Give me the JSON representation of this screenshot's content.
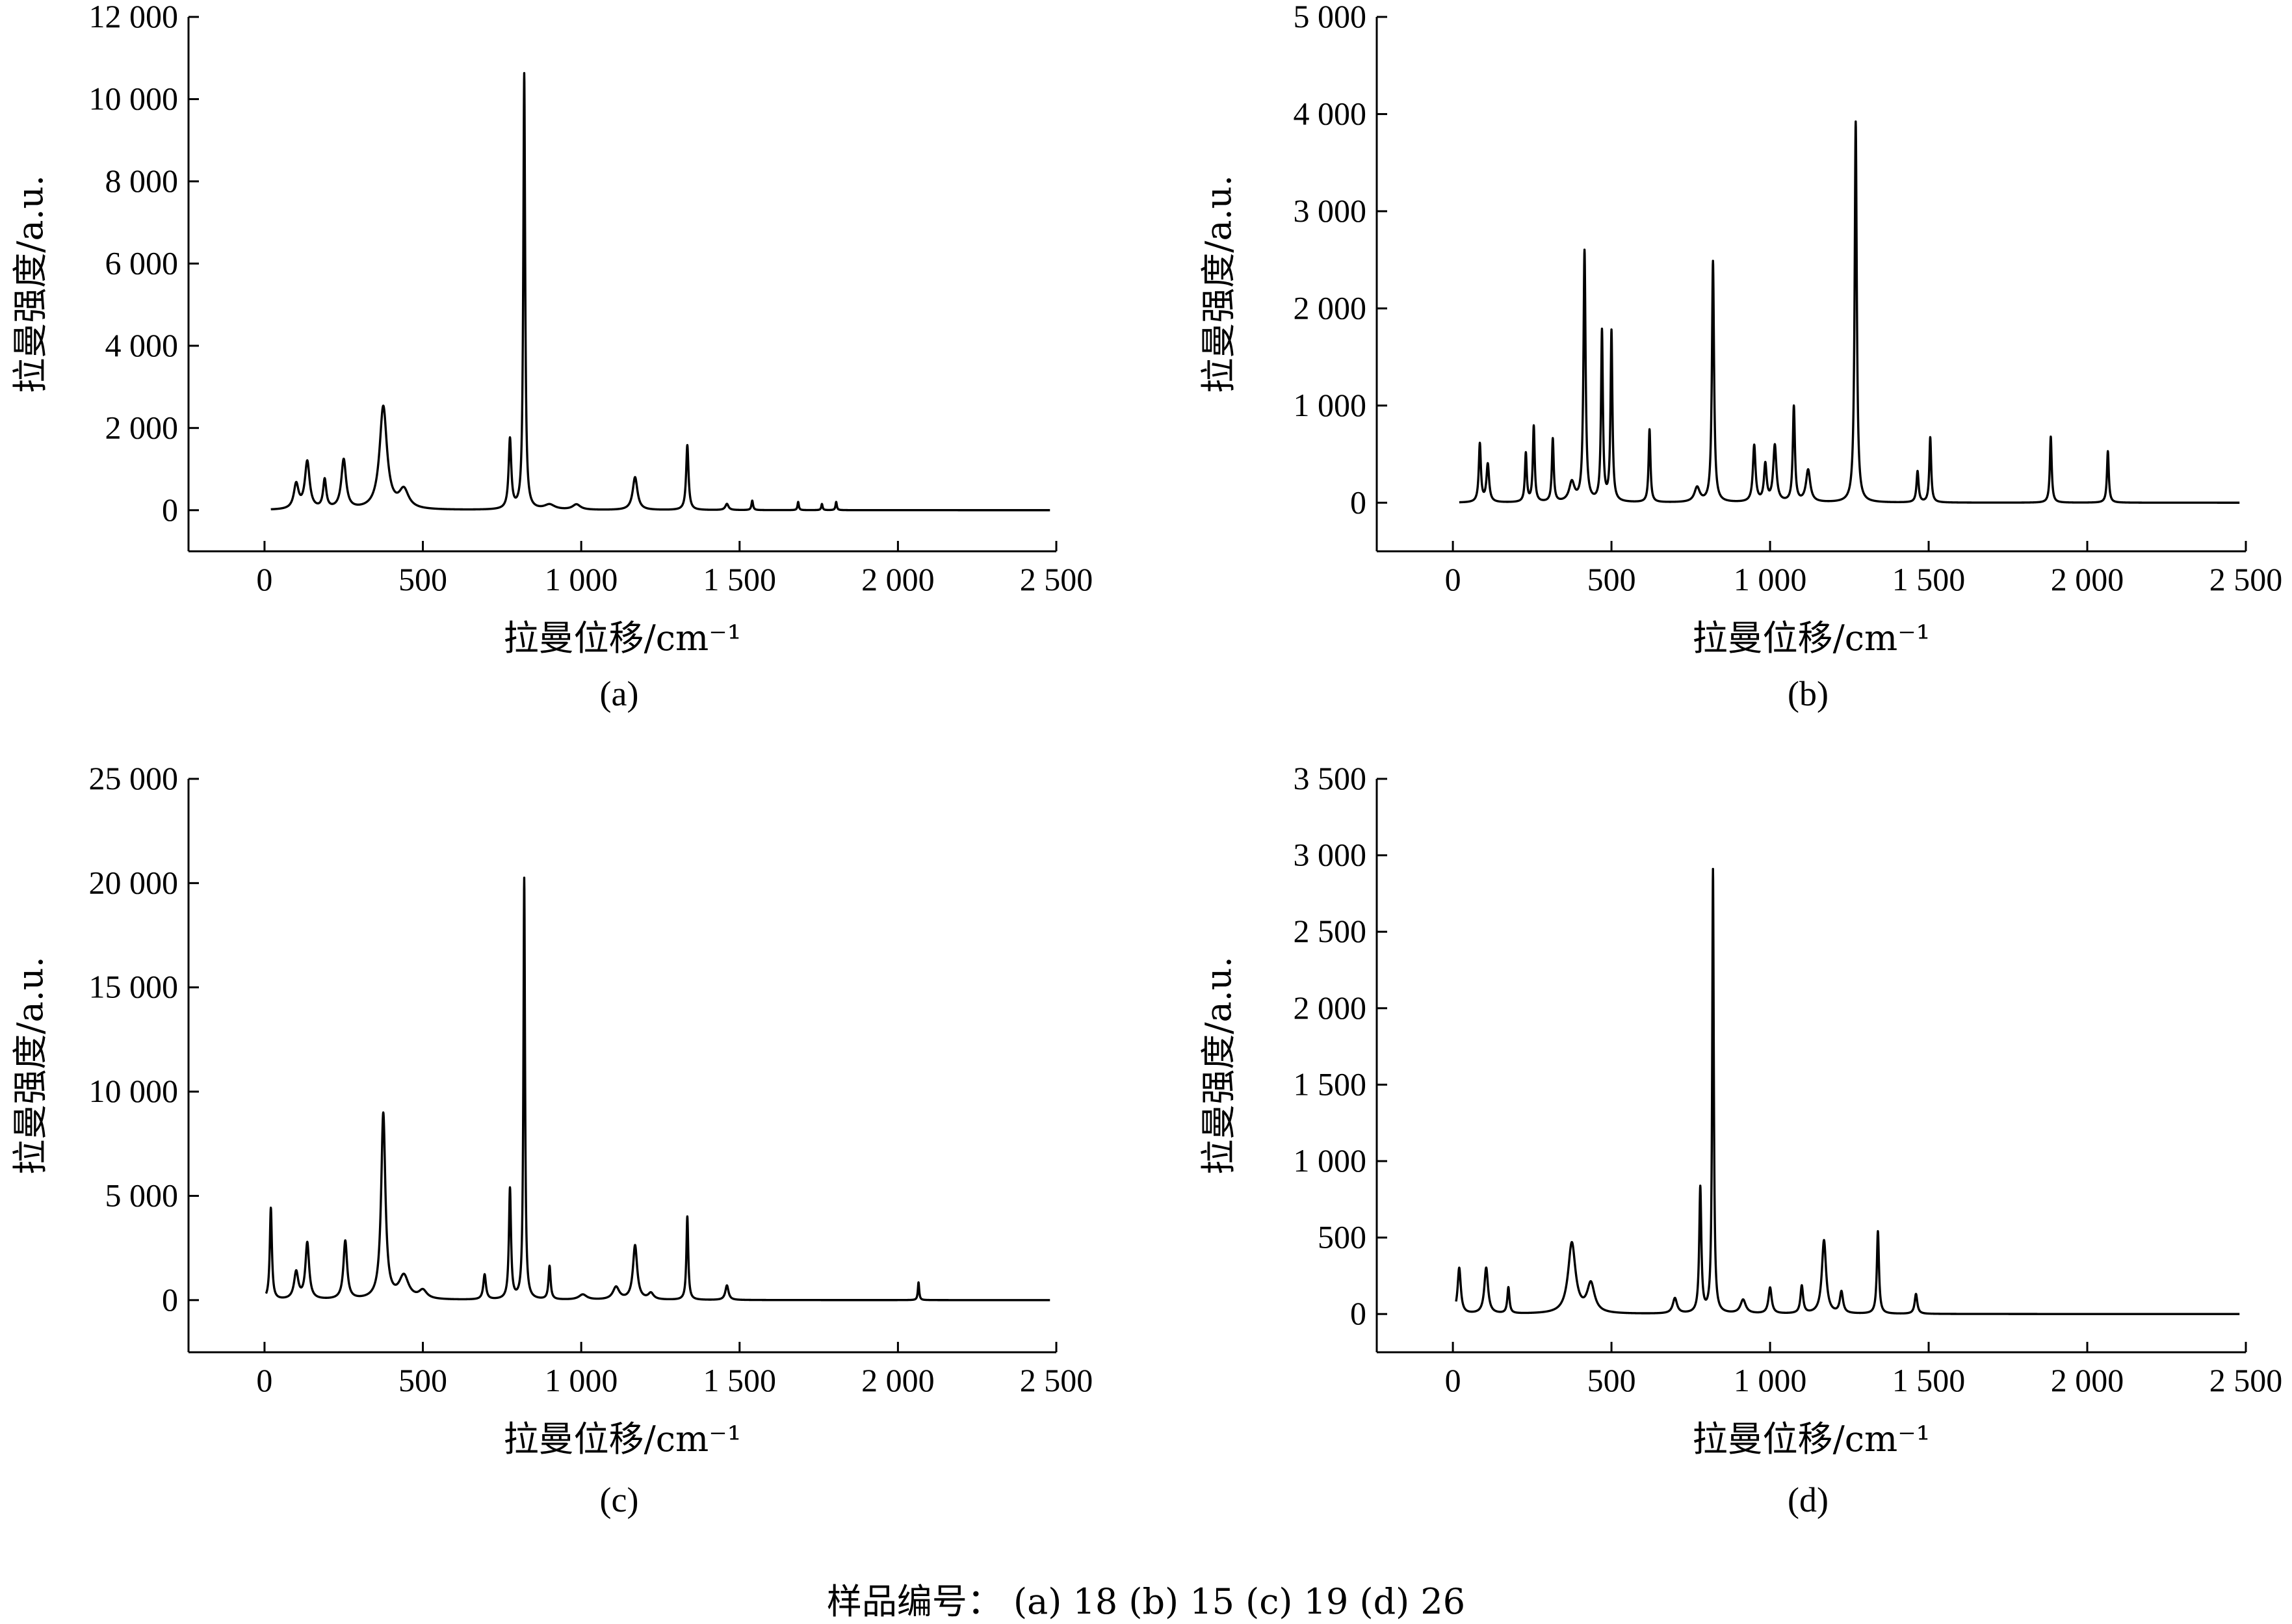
{
  "footer": {
    "text": "样品编号： (a) 18    (b) 15    (c) 19    (d) 26"
  },
  "chart_data": [
    {
      "type": "line",
      "panel": "(a)",
      "xlabel": "拉曼位移/cm⁻¹",
      "ylabel": "拉曼强度/a.u.",
      "xlim": [
        -240,
        2500
      ],
      "ylim": [
        -1000,
        12000
      ],
      "x_ticks": [
        0,
        500,
        1000,
        1500,
        2000,
        2500
      ],
      "x_tick_labels": [
        "0",
        "500",
        "1 000",
        "1 500",
        "2 000",
        "2 500"
      ],
      "y_ticks": [
        0,
        2000,
        4000,
        6000,
        8000,
        10000,
        12000
      ],
      "y_tick_labels": [
        "0",
        "2 000",
        "4 000",
        "6 000",
        "8 000",
        "10 000",
        "12 000"
      ],
      "x_range": [
        20,
        2480
      ],
      "series": [
        {
          "peaks": [
            [
              100,
              600,
              9
            ],
            [
              135,
              1150,
              9
            ],
            [
              190,
              700,
              6
            ],
            [
              250,
              1200,
              9
            ],
            [
              375,
              2500,
              14
            ],
            [
              440,
              450,
              18
            ],
            [
              775,
              1700,
              5
            ],
            [
              820,
              10600,
              3.5
            ],
            [
              900,
              120,
              20
            ],
            [
              985,
              130,
              15
            ],
            [
              1170,
              800,
              9
            ],
            [
              1335,
              1580,
              4.5
            ],
            [
              1460,
              150,
              6
            ],
            [
              1540,
              230,
              3
            ],
            [
              1685,
              200,
              2.5
            ],
            [
              1760,
              150,
              2.5
            ],
            [
              1805,
              200,
              2.5
            ]
          ]
        }
      ]
    },
    {
      "type": "line",
      "panel": "(b)",
      "xlabel": "拉曼位移/cm⁻¹",
      "ylabel": "拉曼强度/a.u.",
      "xlim": [
        -240,
        2500
      ],
      "ylim": [
        -500,
        5000
      ],
      "x_ticks": [
        0,
        500,
        1000,
        1500,
        2000,
        2500
      ],
      "x_tick_labels": [
        "0",
        "500",
        "1 000",
        "1 500",
        "2 000",
        "2 500"
      ],
      "y_ticks": [
        0,
        1000,
        2000,
        3000,
        4000,
        5000
      ],
      "y_tick_labels": [
        "0",
        "1 000",
        "2 000",
        "3 000",
        "4 000",
        "5 000"
      ],
      "x_range": [
        20,
        2480
      ],
      "series": [
        {
          "peaks": [
            [
              85,
              600,
              4
            ],
            [
              110,
              390,
              5
            ],
            [
              230,
              500,
              3.5
            ],
            [
              255,
              780,
              3.5
            ],
            [
              315,
              650,
              3.5
            ],
            [
              375,
              200,
              10
            ],
            [
              415,
              2580,
              4
            ],
            [
              470,
              1750,
              3.5
            ],
            [
              500,
              1750,
              3.5
            ],
            [
              620,
              750,
              3.5
            ],
            [
              770,
              150,
              10
            ],
            [
              820,
              2480,
              4
            ],
            [
              950,
              580,
              5
            ],
            [
              985,
              380,
              5
            ],
            [
              1015,
              580,
              6
            ],
            [
              1075,
              980,
              4
            ],
            [
              1120,
              330,
              8
            ],
            [
              1270,
              3920,
              4
            ],
            [
              1465,
              320,
              4
            ],
            [
              1505,
              670,
              3.5
            ],
            [
              1885,
              680,
              3.5
            ],
            [
              2065,
              530,
              3.5
            ]
          ]
        }
      ]
    },
    {
      "type": "line",
      "panel": "(c)",
      "xlabel": "拉曼位移/cm⁻¹",
      "ylabel": "拉曼强度/a.u.",
      "xlim": [
        -240,
        2500
      ],
      "ylim": [
        -2500,
        25000
      ],
      "x_ticks": [
        0,
        500,
        1000,
        1500,
        2000,
        2500
      ],
      "x_tick_labels": [
        "0",
        "500",
        "1 000",
        "1 500",
        "2 000",
        "2 500"
      ],
      "y_ticks": [
        0,
        5000,
        10000,
        15000,
        20000,
        25000
      ],
      "y_tick_labels": [
        "0",
        "5 000",
        "10 000",
        "15 000",
        "20 000",
        "25 000"
      ],
      "x_range": [
        5,
        2480
      ],
      "series": [
        {
          "peaks": [
            [
              20,
              4400,
              4
            ],
            [
              100,
              1300,
              8
            ],
            [
              135,
              2700,
              7
            ],
            [
              255,
              2800,
              7
            ],
            [
              375,
              8900,
              8
            ],
            [
              440,
              1100,
              18
            ],
            [
              500,
              400,
              15
            ],
            [
              695,
              1200,
              5
            ],
            [
              775,
              5300,
              4
            ],
            [
              820,
              20200,
              3
            ],
            [
              900,
              1600,
              4
            ],
            [
              1005,
              250,
              15
            ],
            [
              1110,
              600,
              12
            ],
            [
              1170,
              2600,
              8
            ],
            [
              1220,
              300,
              10
            ],
            [
              1335,
              4000,
              3.5
            ],
            [
              1460,
              700,
              6
            ],
            [
              2065,
              850,
              2.5
            ]
          ]
        }
      ]
    },
    {
      "type": "line",
      "panel": "(d)",
      "xlabel": "拉曼位移/cm⁻¹",
      "ylabel": "拉曼强度/a.u.",
      "xlim": [
        -240,
        2500
      ],
      "ylim": [
        -250,
        3500
      ],
      "x_ticks": [
        0,
        500,
        1000,
        1500,
        2000,
        2500
      ],
      "x_tick_labels": [
        "0",
        "500",
        "1 000",
        "1 500",
        "2 000",
        "2 500"
      ],
      "y_ticks": [
        0,
        500,
        1000,
        1500,
        2000,
        2500,
        3000,
        3500
      ],
      "y_tick_labels": [
        "0",
        "500",
        "1 000",
        "1 500",
        "2 000",
        "2 500",
        "3 000",
        "3 500"
      ],
      "x_range": [
        10,
        2480
      ],
      "series": [
        {
          "peaks": [
            [
              20,
              300,
              6
            ],
            [
              105,
              300,
              7
            ],
            [
              175,
              170,
              4
            ],
            [
              375,
              460,
              14
            ],
            [
              435,
              190,
              14
            ],
            [
              700,
              100,
              8
            ],
            [
              780,
              820,
              4
            ],
            [
              820,
              2900,
              3
            ],
            [
              915,
              90,
              10
            ],
            [
              1000,
              170,
              6
            ],
            [
              1100,
              180,
              5
            ],
            [
              1170,
              480,
              8
            ],
            [
              1225,
              140,
              6
            ],
            [
              1340,
              540,
              4
            ],
            [
              1460,
              130,
              5
            ]
          ]
        }
      ]
    }
  ]
}
